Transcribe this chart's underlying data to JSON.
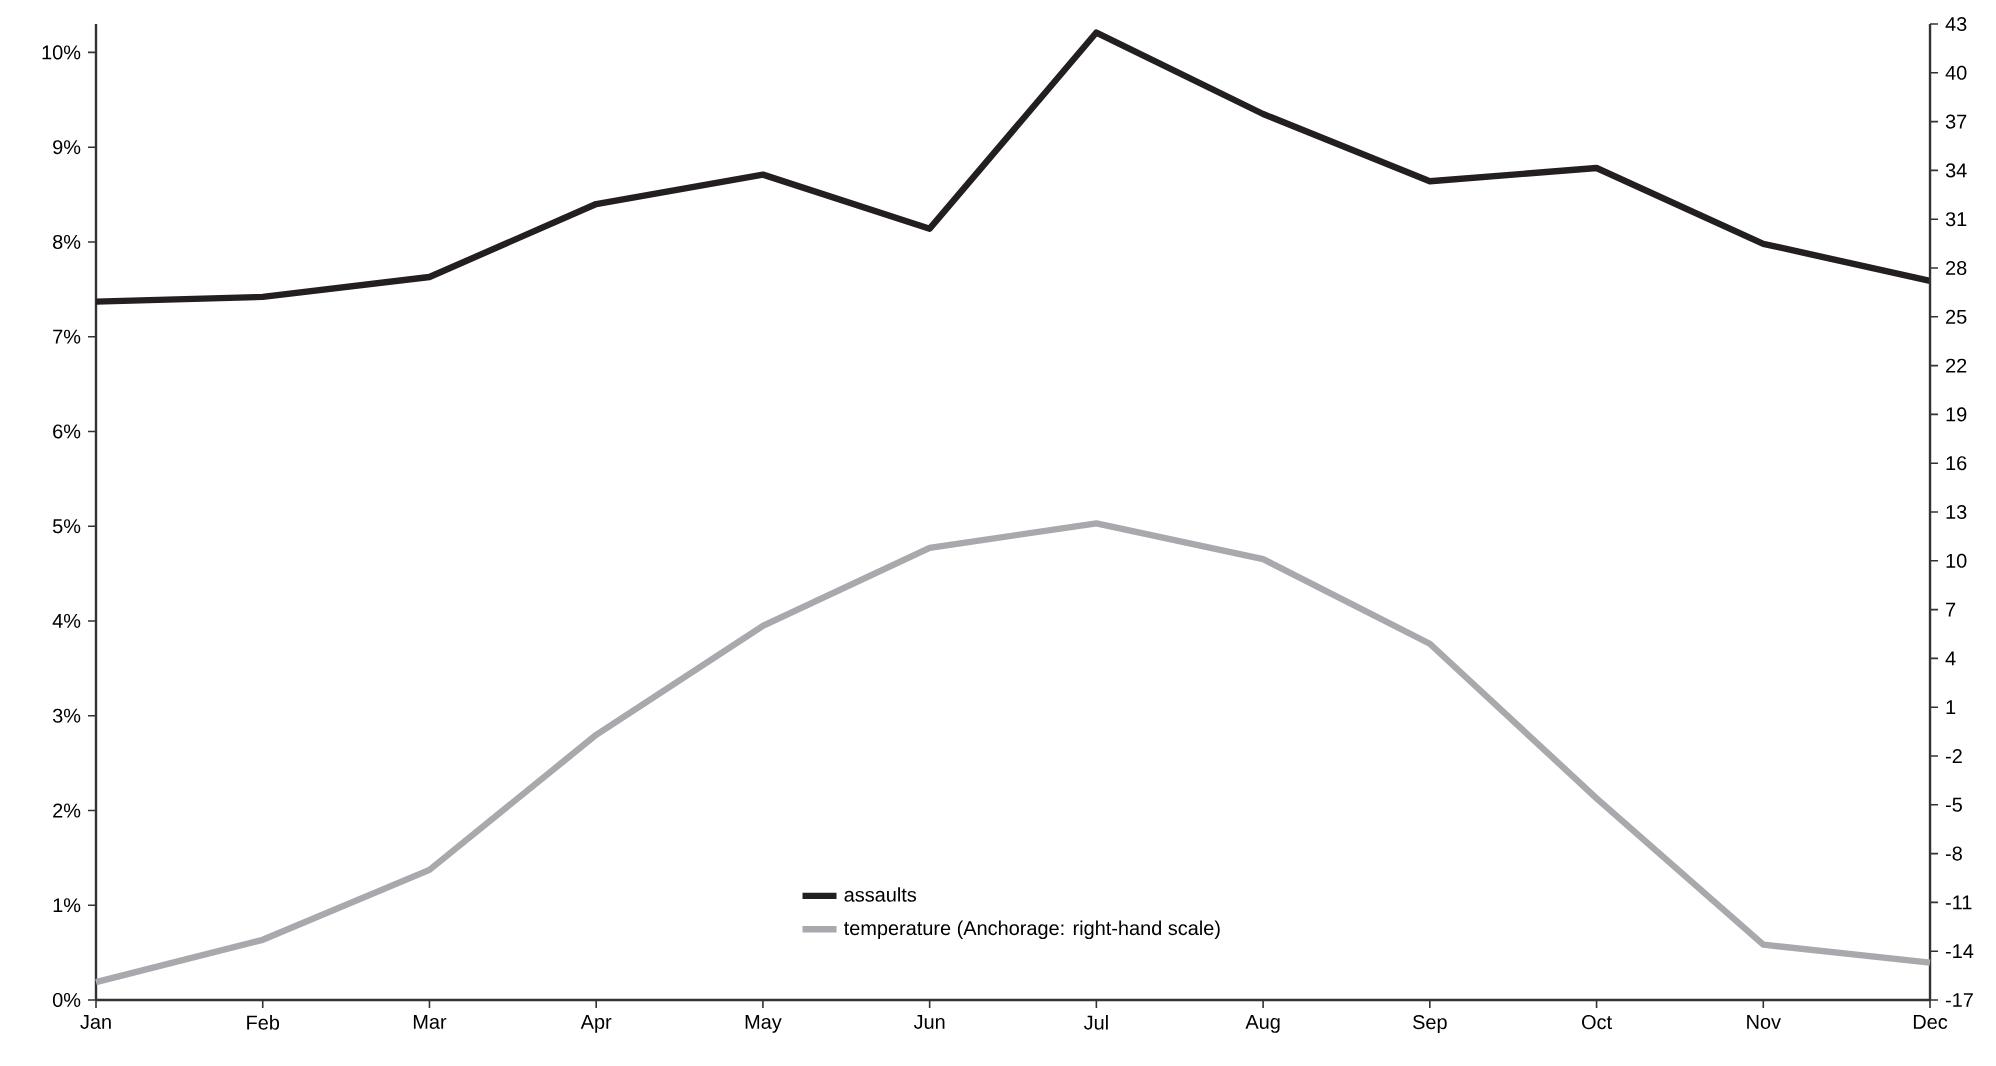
{
  "chart_data": {
    "type": "line",
    "categories": [
      "Jan",
      "Feb",
      "Mar",
      "Apr",
      "May",
      "Jun",
      "Jul",
      "Aug",
      "Sep",
      "Oct",
      "Nov",
      "Dec"
    ],
    "series": [
      {
        "name": "assaults",
        "color": "#231f20",
        "values": [
          7.37,
          7.42,
          7.63,
          8.4,
          8.71,
          8.14,
          10.21,
          9.35,
          8.64,
          8.78,
          7.98,
          7.59
        ]
      },
      {
        "name": "temperature (Anchorage: right-hand scale)",
        "color": "#a7a9ac",
        "axis": "y2",
        "values": [
          -15.9,
          -13.3,
          -9.0,
          -0.7,
          6.0,
          10.8,
          12.3,
          10.1,
          4.9,
          -4.6,
          -13.6,
          -14.7
        ]
      }
    ],
    "ylim": [
      0,
      10.3
    ],
    "yticks": [
      {
        "value": 0,
        "label": "0%"
      },
      {
        "value": 1,
        "label": "1%"
      },
      {
        "value": 2,
        "label": "2%"
      },
      {
        "value": 3,
        "label": "3%"
      },
      {
        "value": 4,
        "label": "4%"
      },
      {
        "value": 5,
        "label": "5%"
      },
      {
        "value": 6,
        "label": "6%"
      },
      {
        "value": 7,
        "label": "7%"
      },
      {
        "value": 8,
        "label": "8%"
      },
      {
        "value": 9,
        "label": "9%"
      },
      {
        "value": 10,
        "label": "10%"
      }
    ],
    "y2lim": [
      -17,
      43
    ],
    "y2ticks": [
      -17,
      -14,
      -11,
      -8,
      -5,
      -2,
      1,
      4,
      7,
      10,
      13,
      16,
      19,
      22,
      25,
      28,
      31,
      34,
      37,
      40,
      43
    ],
    "legend": "bottom",
    "line_style": "solid"
  }
}
